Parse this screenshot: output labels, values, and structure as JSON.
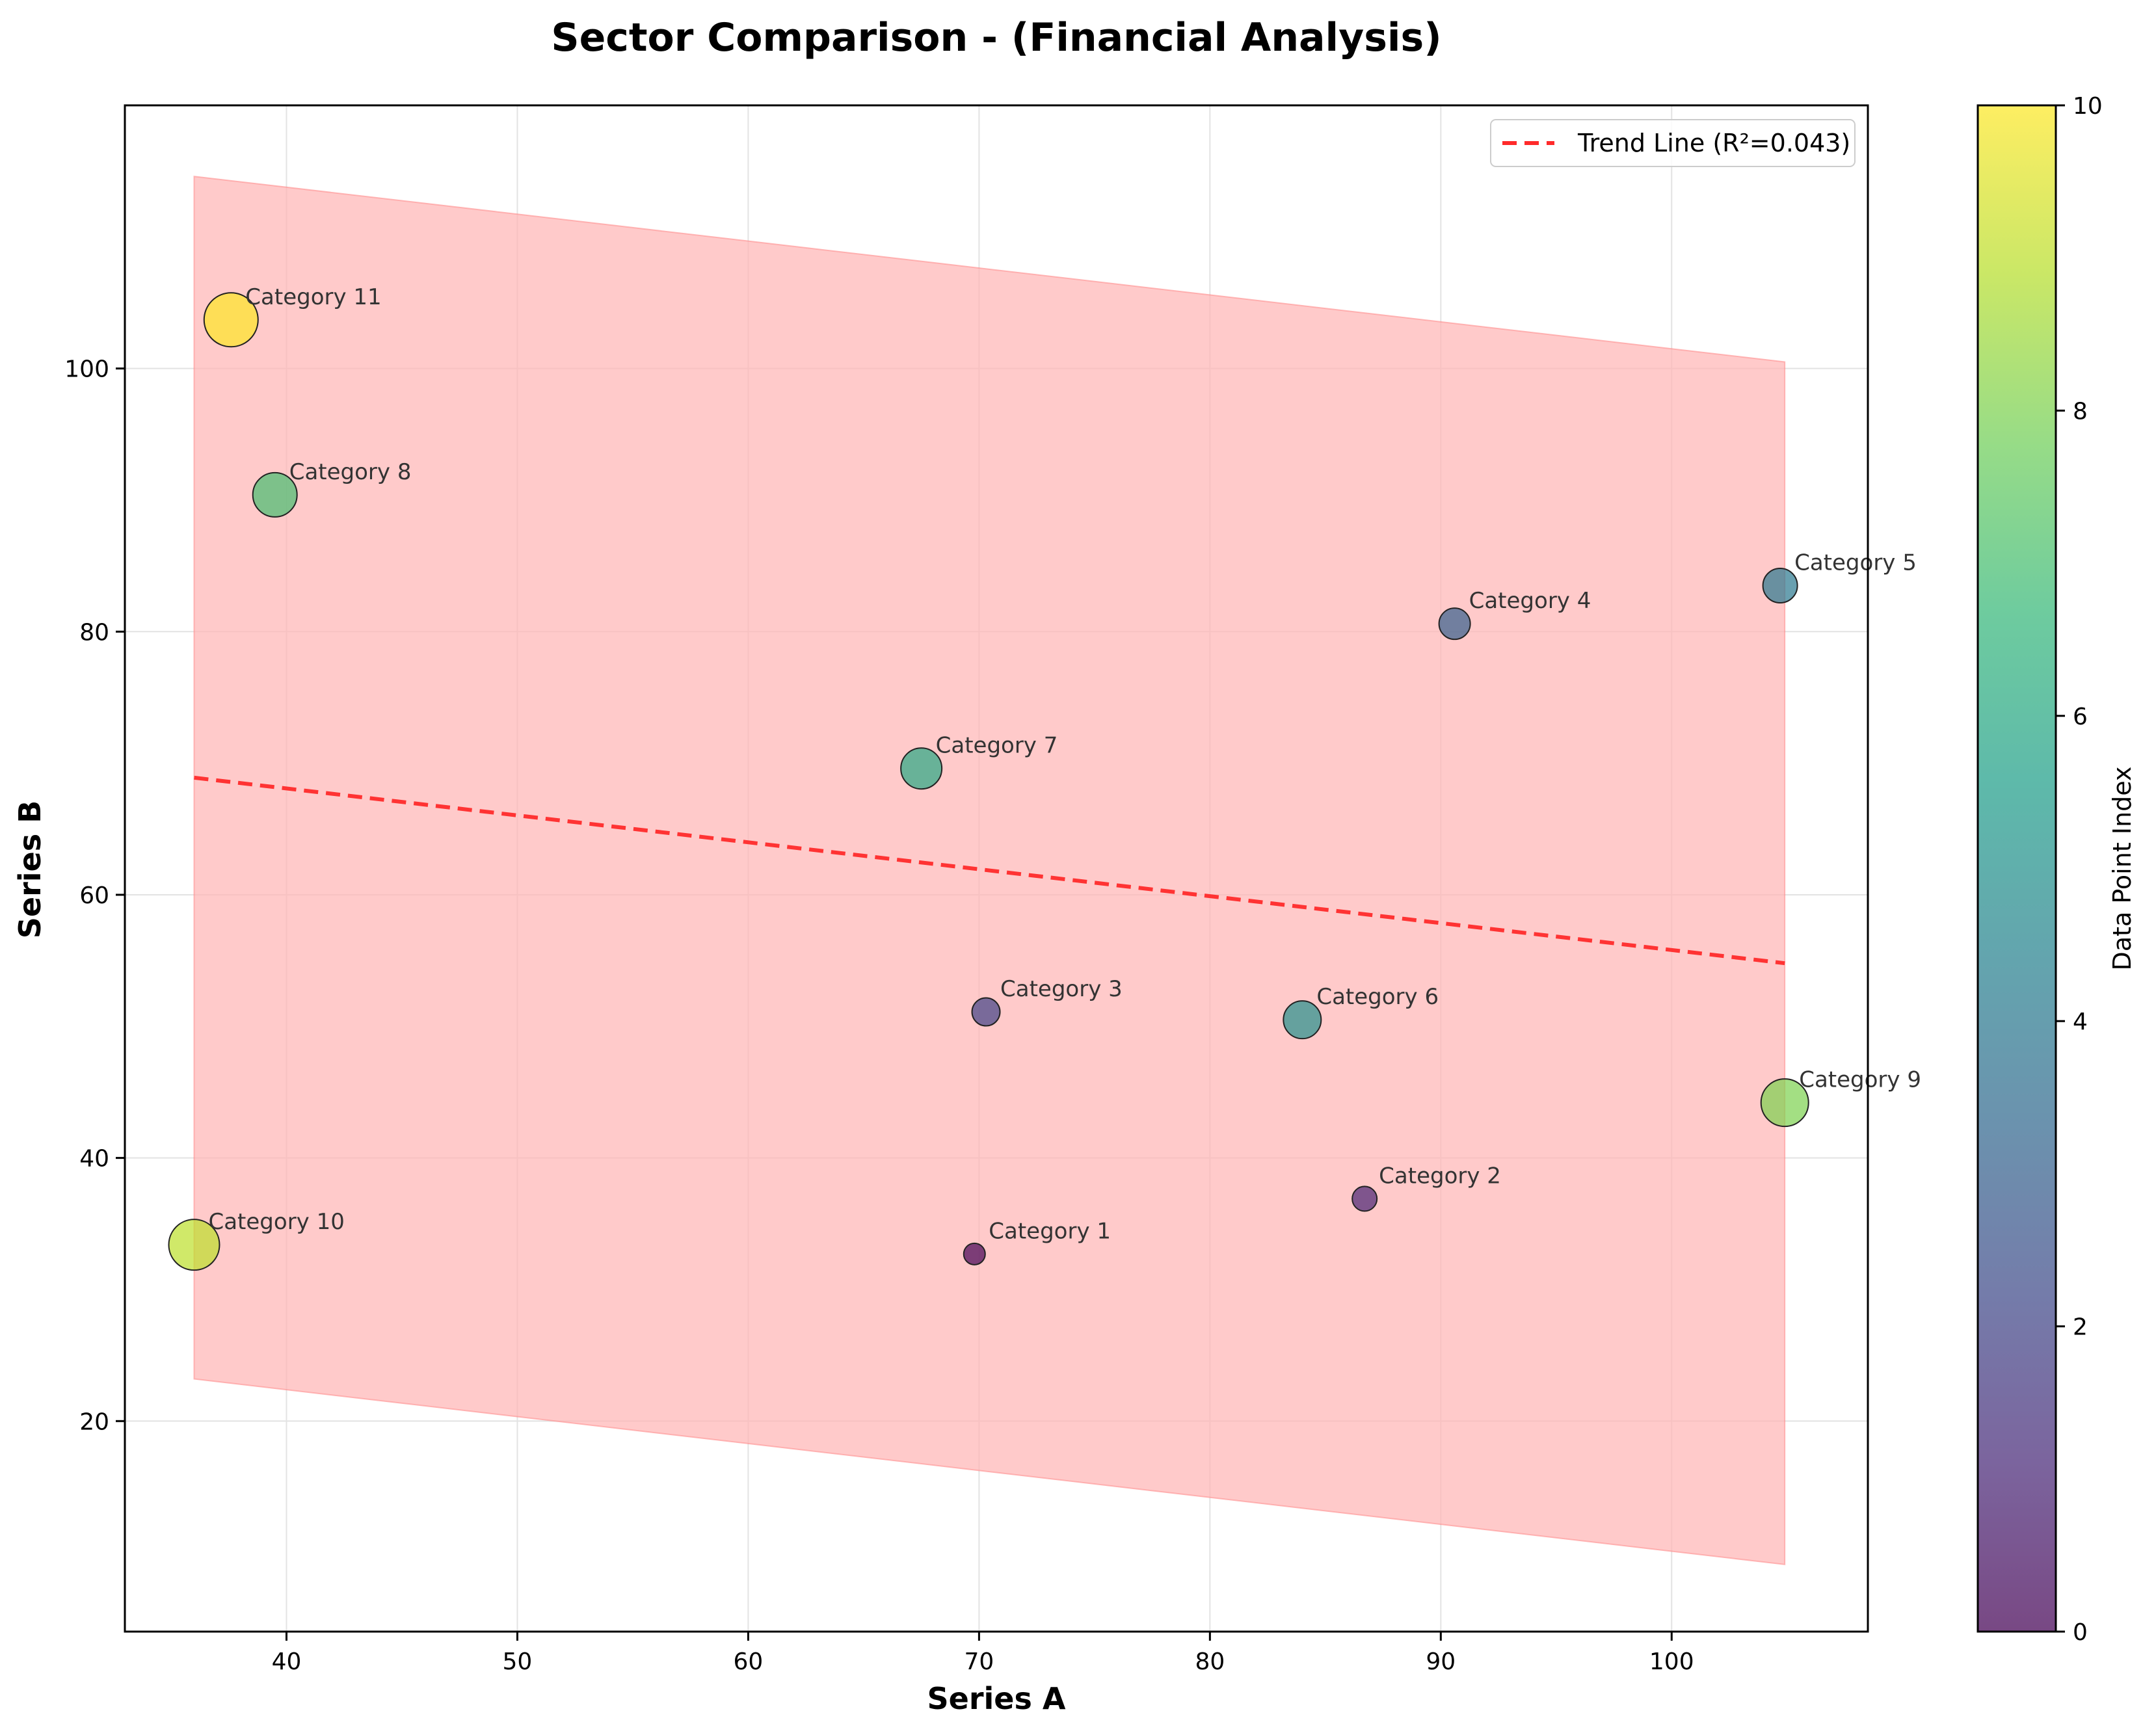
{
  "chart_data": {
    "type": "scatter",
    "title": "Sector Comparison - (Financial Analysis)",
    "xlabel": "Series A",
    "ylabel": "Series B",
    "xlim": [
      33,
      108.5
    ],
    "ylim": [
      4,
      120
    ],
    "xticks": [
      40,
      50,
      60,
      70,
      80,
      90,
      100
    ],
    "yticks": [
      20,
      40,
      60,
      80,
      100
    ],
    "grid": true,
    "points": [
      {
        "label": "Category 1",
        "x": 69.8,
        "y": 32.7,
        "size": 1,
        "colorIndex": 0
      },
      {
        "label": "Category 2",
        "x": 86.7,
        "y": 36.9,
        "size": 2,
        "colorIndex": 1
      },
      {
        "label": "Category 3",
        "x": 70.3,
        "y": 51.1,
        "size": 3,
        "colorIndex": 2
      },
      {
        "label": "Category 4",
        "x": 90.6,
        "y": 80.6,
        "size": 4,
        "colorIndex": 3
      },
      {
        "label": "Category 5",
        "x": 104.7,
        "y": 83.5,
        "size": 5,
        "colorIndex": 4
      },
      {
        "label": "Category 6",
        "x": 84.0,
        "y": 50.5,
        "size": 6,
        "colorIndex": 5
      },
      {
        "label": "Category 7",
        "x": 67.5,
        "y": 69.6,
        "size": 7,
        "colorIndex": 6
      },
      {
        "label": "Category 8",
        "x": 39.5,
        "y": 90.4,
        "size": 8,
        "colorIndex": 7
      },
      {
        "label": "Category 9",
        "x": 104.9,
        "y": 44.2,
        "size": 9,
        "colorIndex": 8
      },
      {
        "label": "Category 10",
        "x": 36.0,
        "y": 33.4,
        "size": 10,
        "colorIndex": 9
      },
      {
        "label": "Category 11",
        "x": 37.6,
        "y": 103.7,
        "size": 11,
        "colorIndex": 10
      }
    ],
    "trend_line": {
      "label": "Trend Line (R²=0.043)",
      "x": [
        36.0,
        104.9
      ],
      "y": [
        68.9,
        54.8
      ],
      "color": "#ff2a2a"
    },
    "band": {
      "x": [
        36.0,
        104.9
      ],
      "upper": [
        114.6,
        100.5
      ],
      "lower": [
        23.2,
        9.1
      ],
      "color": "#ffb3b3"
    },
    "legend": {
      "location": "upper right"
    },
    "colorbar": {
      "label": "Data Point Index",
      "min": 0,
      "max": 10,
      "ticks": [
        0,
        2,
        4,
        6,
        8,
        10
      ],
      "colormap": [
        "#440154",
        "#482878",
        "#3e4989",
        "#31688e",
        "#26828e",
        "#1f9e89",
        "#35b779",
        "#6ece58",
        "#b5de2b",
        "#fde725"
      ]
    }
  }
}
